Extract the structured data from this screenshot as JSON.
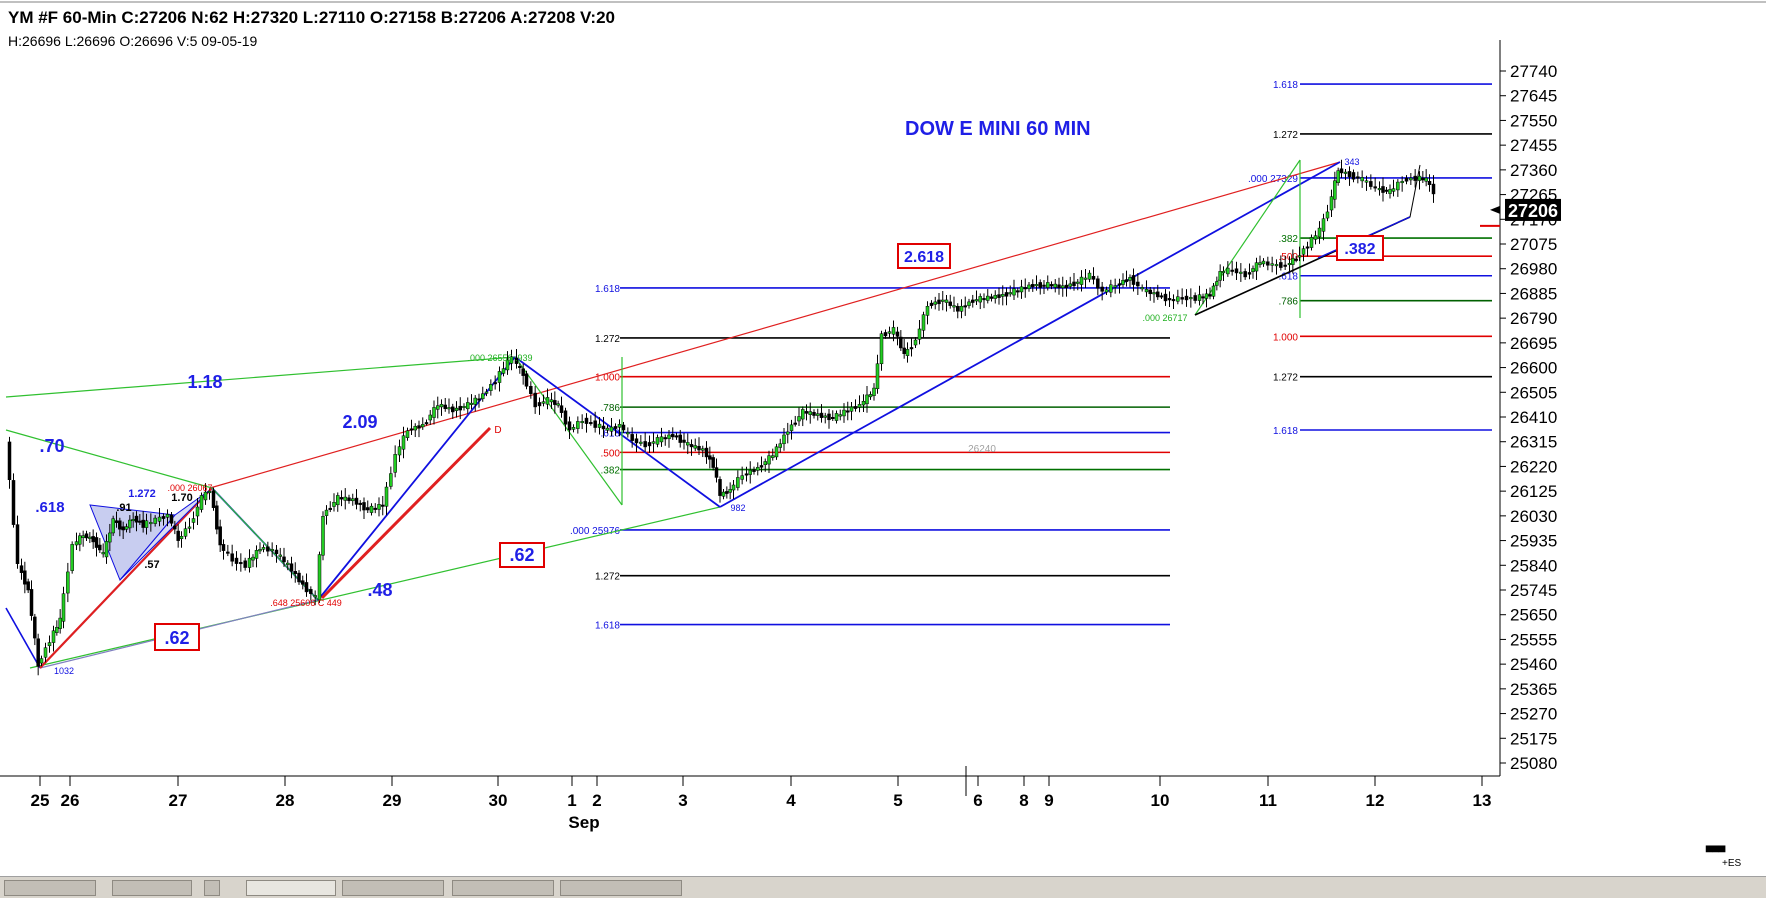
{
  "header": {
    "line1": "YM #F 60-Min C:27206 N:62 H:27320 L:27110 O:27158 B:27206 A:27208 V:20",
    "line2": "H:26696  L:26696  O:26696  V:5  09-05-19"
  },
  "title": "DOW E MINI  60 MIN",
  "current_price": "27206",
  "es_label": "+ES",
  "chart_data": {
    "type": "candlestick",
    "title": "DOW E MINI  60 MIN",
    "ylim": [
      25030,
      27790
    ],
    "y_ticks": [
      "27740",
      "27645",
      "27550",
      "27455",
      "27360",
      "27265",
      "27170",
      "27075",
      "26980",
      "26885",
      "26790",
      "26695",
      "26600",
      "26505",
      "26410",
      "26315",
      "26220",
      "26125",
      "26030",
      "25935",
      "25840",
      "25745",
      "25650",
      "25555",
      "25460",
      "25365",
      "25270",
      "25175",
      "25080"
    ],
    "x_ticks": [
      "25",
      "26",
      "27",
      "28",
      "29",
      "30",
      "1",
      "2",
      "3",
      "4",
      "5",
      "6",
      "8",
      "9",
      "10",
      "11",
      "12",
      "13"
    ],
    "x_month_label": "Sep",
    "fib_levels": [
      {
        "label": "1.618",
        "price": 26906,
        "color": "#1010e0"
      },
      {
        "label": "1.272",
        "price": 26714,
        "color": "#000000"
      },
      {
        "label": "1.000",
        "price": 26565,
        "color": "#e00000"
      },
      {
        "label": ".786",
        "price": 26448,
        "color": "#006000"
      },
      {
        "label": ".618",
        "price": 26350,
        "color": "#1010e0"
      },
      {
        "label": ".500",
        "price": 26274,
        "color": "#e00000"
      },
      {
        "label": ".382",
        "price": 26208,
        "color": "#007000"
      },
      {
        "label": ".000 25976",
        "price": 25976,
        "color": "#1010e0"
      },
      {
        "label": "1.272",
        "price": 25800,
        "color": "#000000"
      },
      {
        "label": "1.618",
        "price": 25612,
        "color": "#1010e0"
      },
      {
        "label": "1.618",
        "price": 27690,
        "color": "#1010e0"
      },
      {
        "label": "1.272",
        "price": 27498,
        "color": "#000000"
      },
      {
        "label": ".000 27329",
        "price": 27329,
        "color": "#1010e0"
      },
      {
        "label": ".382",
        "price": 27098,
        "color": "#007000"
      },
      {
        "label": ".500",
        "price": 27028,
        "color": "#e00000"
      },
      {
        "label": ".618",
        "price": 26953,
        "color": "#1010e0"
      },
      {
        "label": ".786",
        "price": 26857,
        "color": "#006000"
      },
      {
        "label": "1.000",
        "price": 26720,
        "color": "#e00000"
      },
      {
        "label": "1.272",
        "price": 26565,
        "color": "#000000"
      },
      {
        "label": "1.618",
        "price": 26360,
        "color": "#1010e0"
      }
    ],
    "annotations": [
      {
        "text": "1.18",
        "color": "#1f1fe6"
      },
      {
        "text": ".70",
        "color": "#1f1fe6"
      },
      {
        "text": ".618",
        "color": "#1f1fe6"
      },
      {
        "text": "2.09",
        "color": "#1f1fe6"
      },
      {
        "text": ".48",
        "color": "#1f1fe6"
      },
      {
        "text": ".62",
        "color": "#1f1fe6",
        "boxed": true
      },
      {
        "text": ".62",
        "color": "#1f1fe6",
        "boxed": true
      },
      {
        "text": "2.618",
        "color": "#1f1fe6",
        "boxed": true
      },
      {
        "text": ".382",
        "color": "#1f1fe6",
        "boxed": true
      },
      {
        "text": "1.272",
        "color": "#1f1fe6"
      },
      {
        "text": "1.70",
        "color": "#000000"
      },
      {
        "text": ".91",
        "color": "#000000"
      },
      {
        "text": ".57",
        "color": "#000000"
      },
      {
        "text": "26240",
        "color": "#a0a0a0"
      },
      {
        "text": "D",
        "color": "#e00000"
      },
      {
        "text": ".000 26556 .939",
        "color": "#20b020"
      },
      {
        "text": ".000 26717",
        "color": "#20b020"
      },
      {
        "text": "1032",
        "color": "#1010e0"
      },
      {
        "text": ".648  25606 C 449",
        "color": "#e00000"
      },
      {
        "text": ".000 26067",
        "color": "#e00000"
      },
      {
        "text": "982",
        "color": "#1010e0"
      },
      {
        "text": "343",
        "color": "#1010e0"
      }
    ],
    "anchor_points": [
      {
        "date": "Aug 25",
        "price": 25332
      },
      {
        "date": "Aug 27",
        "price": 26067
      },
      {
        "date": "Aug 28",
        "price": 25606
      },
      {
        "date": "Aug 30",
        "price": 26556
      },
      {
        "date": "Sep 3",
        "price": 25976
      },
      {
        "date": "Sep 11",
        "price": 27329
      }
    ]
  }
}
